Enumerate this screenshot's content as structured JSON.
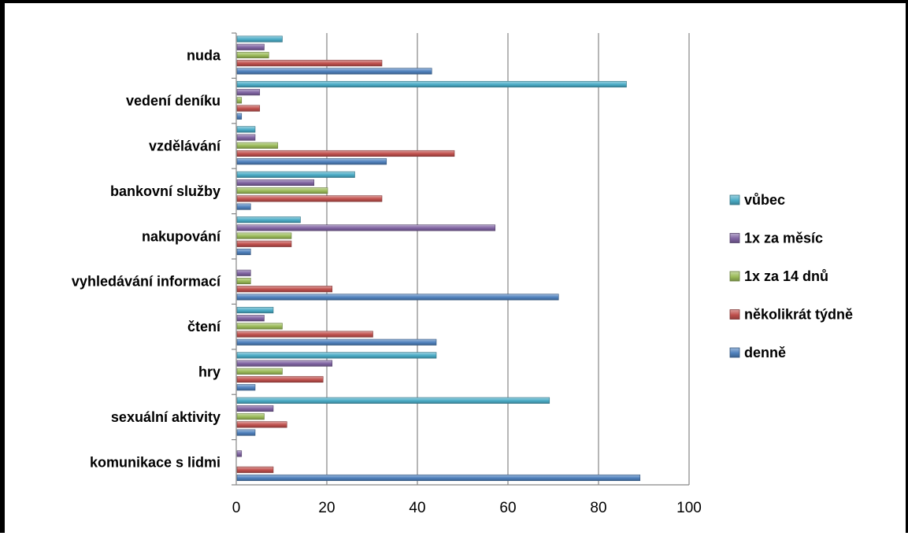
{
  "chart_data": {
    "type": "bar",
    "orientation": "horizontal",
    "categories": [
      "komunikace s lidmi",
      "sexuální aktivity",
      "hry",
      "čtení",
      "vyhledávání informací",
      "nakupování",
      "bankovní služby",
      "vzdělávání",
      "vedení deníku",
      "nuda"
    ],
    "series": [
      {
        "name": "denně",
        "color": "#4F81BD",
        "values": [
          89,
          4,
          4,
          44,
          71,
          3,
          3,
          33,
          1,
          43
        ]
      },
      {
        "name": "několikrát týdně",
        "color": "#C0504D",
        "values": [
          8,
          11,
          19,
          30,
          21,
          12,
          32,
          48,
          5,
          32
        ]
      },
      {
        "name": "1x za 14 dnů",
        "color": "#9BBB59",
        "values": [
          0,
          6,
          10,
          10,
          3,
          12,
          20,
          9,
          1,
          7
        ]
      },
      {
        "name": "1x za měsíc",
        "color": "#8064A2",
        "values": [
          1,
          8,
          21,
          6,
          3,
          57,
          17,
          4,
          5,
          6
        ]
      },
      {
        "name": "vůbec",
        "color": "#4BACC6",
        "values": [
          0,
          69,
          44,
          8,
          0,
          14,
          26,
          4,
          86,
          10
        ]
      }
    ],
    "xlim": [
      0,
      100
    ],
    "xticks": [
      "0",
      "20",
      "40",
      "60",
      "80",
      "100"
    ],
    "grid": "vertical",
    "legend_position": "right",
    "title": "",
    "xlabel": "",
    "ylabel": ""
  }
}
